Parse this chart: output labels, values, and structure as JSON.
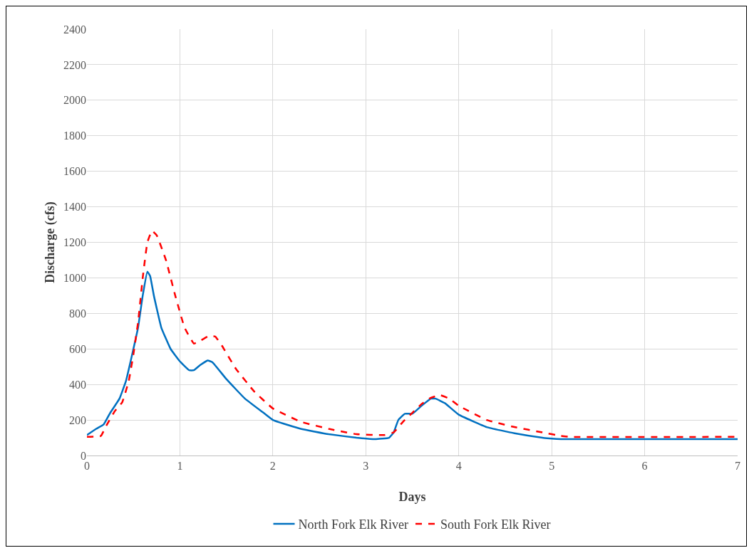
{
  "chart_data": {
    "type": "line",
    "xlabel": "Days",
    "ylabel": "Discharge (cfs)",
    "xlim": [
      0,
      7
    ],
    "xticks": [
      0,
      1,
      2,
      3,
      4,
      5,
      6,
      7
    ],
    "ylim": [
      0,
      2400
    ],
    "yticks": [
      0,
      200,
      400,
      600,
      800,
      1000,
      1200,
      1400,
      1600,
      1800,
      2000,
      2200,
      2400
    ],
    "grid": true,
    "legend": "bottom",
    "marker": "none",
    "series": [
      {
        "name": "North Fork Elk River",
        "color": "#0070c0",
        "line_style": "solid",
        "x": [
          0,
          0.1,
          0.18,
          0.25,
          0.35,
          0.42,
          0.5,
          0.55,
          0.6,
          0.65,
          0.68,
          0.72,
          0.8,
          0.9,
          1.0,
          1.1,
          1.15,
          1.22,
          1.3,
          1.35,
          1.5,
          1.7,
          1.9,
          2.0,
          2.3,
          2.6,
          2.9,
          3.1,
          3.25,
          3.3,
          3.35,
          3.42,
          3.5,
          3.6,
          3.7,
          3.75,
          3.85,
          4.0,
          4.3,
          4.6,
          4.9,
          5.0,
          5.1,
          7.0
        ],
        "values": [
          115,
          150,
          175,
          240,
          320,
          420,
          600,
          720,
          900,
          1035,
          1010,
          900,
          720,
          600,
          530,
          480,
          480,
          510,
          535,
          525,
          430,
          320,
          240,
          200,
          150,
          120,
          100,
          92,
          100,
          130,
          200,
          235,
          235,
          280,
          320,
          320,
          295,
          230,
          160,
          125,
          100,
          95,
          92,
          92
        ]
      },
      {
        "name": "South Fork Elk River",
        "color": "#ff0000",
        "line_style": "dashed",
        "x": [
          0,
          0.15,
          0.2,
          0.3,
          0.38,
          0.45,
          0.5,
          0.55,
          0.6,
          0.65,
          0.7,
          0.75,
          0.85,
          0.95,
          1.05,
          1.15,
          1.2,
          1.3,
          1.38,
          1.45,
          1.6,
          1.8,
          2.0,
          2.3,
          2.6,
          2.9,
          3.2,
          3.3,
          3.4,
          3.5,
          3.6,
          3.7,
          3.8,
          3.9,
          4.0,
          4.3,
          4.6,
          4.9,
          5.1,
          5.2,
          7.0
        ],
        "values": [
          105,
          110,
          160,
          250,
          300,
          420,
          570,
          750,
          1000,
          1200,
          1265,
          1240,
          1100,
          900,
          720,
          630,
          640,
          670,
          670,
          620,
          490,
          360,
          265,
          190,
          150,
          120,
          115,
          130,
          190,
          240,
          290,
          325,
          340,
          320,
          280,
          200,
          160,
          130,
          110,
          105,
          105
        ]
      }
    ]
  }
}
